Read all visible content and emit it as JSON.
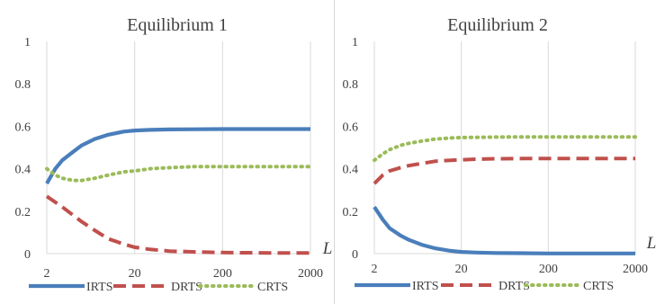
{
  "colors": {
    "irts": "#4a7ebb",
    "drts": "#c0504d",
    "crts": "#9bbb59",
    "grid": "#d9d9d9",
    "text": "#404040"
  },
  "chart_data": [
    {
      "type": "line",
      "title": "Equilibrium 1",
      "xlabel": "L",
      "ylabel": "",
      "xscale": "log",
      "xlim": [
        2,
        2000
      ],
      "ylim": [
        0,
        1
      ],
      "xticks": [
        "2",
        "20",
        "200",
        "2000"
      ],
      "yticks": [
        "0",
        "0.2",
        "0.4",
        "0.6",
        "0.8",
        "1"
      ],
      "grid": "vertical",
      "legend": "bottom",
      "series": [
        {
          "name": "IRTS",
          "style": "solid",
          "color": "#4a7ebb",
          "x": [
            2,
            2.5,
            3,
            4,
            5,
            7,
            10,
            15,
            20,
            30,
            50,
            100,
            200,
            500,
            1000,
            2000
          ],
          "y": [
            0.33,
            0.4,
            0.44,
            0.48,
            0.51,
            0.54,
            0.56,
            0.575,
            0.58,
            0.583,
            0.585,
            0.586,
            0.587,
            0.587,
            0.587,
            0.587
          ]
        },
        {
          "name": "DRTS",
          "style": "dashed",
          "color": "#c0504d",
          "x": [
            2,
            3,
            5,
            7,
            10,
            15,
            20,
            30,
            50,
            100,
            200,
            500,
            1000,
            2000
          ],
          "y": [
            0.27,
            0.22,
            0.15,
            0.11,
            0.07,
            0.045,
            0.03,
            0.02,
            0.012,
            0.008,
            0.005,
            0.004,
            0.003,
            0.003
          ]
        },
        {
          "name": "CRTS",
          "style": "dotted",
          "color": "#9bbb59",
          "x": [
            2,
            2.5,
            3,
            4,
            5,
            7,
            10,
            15,
            20,
            30,
            50,
            100,
            200,
            500,
            1000,
            2000
          ],
          "y": [
            0.4,
            0.37,
            0.355,
            0.345,
            0.345,
            0.355,
            0.37,
            0.385,
            0.39,
            0.4,
            0.405,
            0.41,
            0.41,
            0.41,
            0.41,
            0.41
          ]
        }
      ]
    },
    {
      "type": "line",
      "title": "Equilibrium 2",
      "xlabel": "L",
      "ylabel": "",
      "xscale": "log",
      "xlim": [
        2,
        2000
      ],
      "ylim": [
        0,
        1
      ],
      "xticks": [
        "2",
        "20",
        "200",
        "2000"
      ],
      "yticks": [
        "0",
        "0.2",
        "0.4",
        "0.6",
        "0.8",
        "1"
      ],
      "grid": "vertical",
      "legend": "bottom",
      "series": [
        {
          "name": "IRTS",
          "style": "solid",
          "color": "#4a7ebb",
          "x": [
            2,
            2.5,
            3,
            4,
            5,
            7,
            10,
            15,
            20,
            30,
            50,
            100,
            200,
            500,
            1000,
            2000
          ],
          "y": [
            0.22,
            0.16,
            0.12,
            0.085,
            0.065,
            0.042,
            0.025,
            0.013,
            0.008,
            0.005,
            0.003,
            0.002,
            0.001,
            0.001,
            0.001,
            0.001
          ]
        },
        {
          "name": "DRTS",
          "style": "dashed",
          "color": "#c0504d",
          "x": [
            2,
            2.5,
            3,
            4,
            5,
            7,
            10,
            15,
            20,
            30,
            50,
            100,
            200,
            500,
            1000,
            2000
          ],
          "y": [
            0.33,
            0.37,
            0.39,
            0.405,
            0.415,
            0.425,
            0.435,
            0.44,
            0.442,
            0.445,
            0.447,
            0.448,
            0.448,
            0.448,
            0.448,
            0.448
          ]
        },
        {
          "name": "CRTS",
          "style": "dotted",
          "color": "#9bbb59",
          "x": [
            2,
            2.5,
            3,
            4,
            5,
            7,
            10,
            15,
            20,
            30,
            50,
            100,
            200,
            500,
            1000,
            2000
          ],
          "y": [
            0.44,
            0.47,
            0.49,
            0.51,
            0.52,
            0.53,
            0.54,
            0.545,
            0.547,
            0.548,
            0.549,
            0.55,
            0.55,
            0.55,
            0.55,
            0.55
          ]
        }
      ]
    }
  ]
}
